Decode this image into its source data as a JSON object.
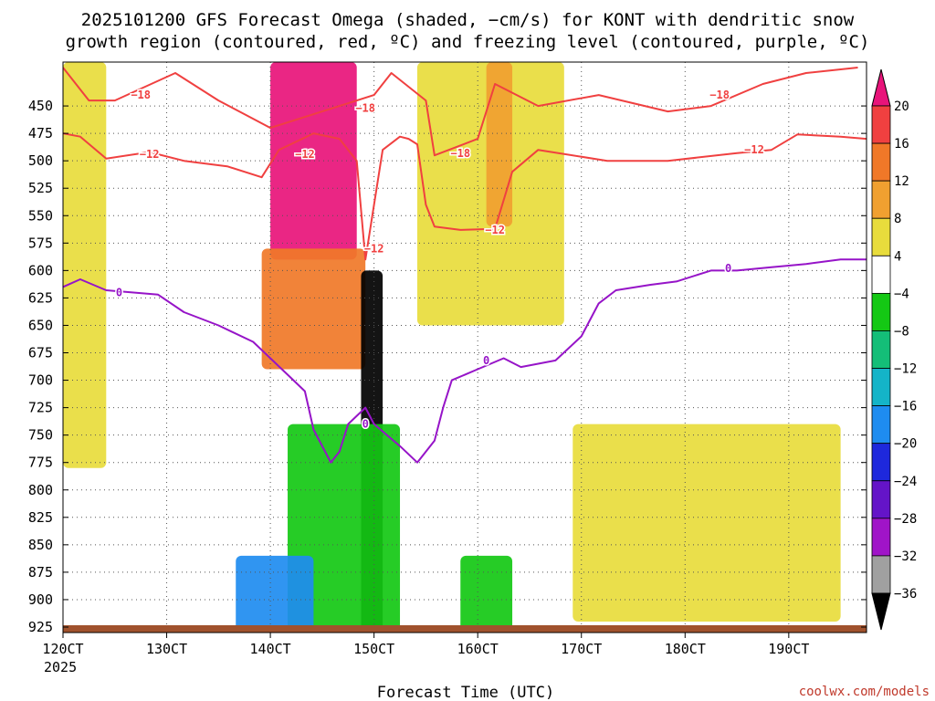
{
  "chart_data": {
    "type": "heatmap",
    "title": "2025101200 GFS Forecast Omega (shaded, −cm/s) for KONT with dendritic snow",
    "title_line2": "growth region (contoured, red, ºC) and freezing level (contoured, purple, ºC)",
    "xlabel": "Forecast Time (UTC)",
    "x_first_label": "120CT",
    "x_year": "2025",
    "x_ticks": [
      {
        "label": "120CT",
        "hour": 0
      },
      {
        "label": "130CT",
        "hour": 24
      },
      {
        "label": "140CT",
        "hour": 48
      },
      {
        "label": "150CT",
        "hour": 72
      },
      {
        "label": "160CT",
        "hour": 96
      },
      {
        "label": "170CT",
        "hour": 120
      },
      {
        "label": "180CT",
        "hour": 144
      },
      {
        "label": "190CT",
        "hour": 168
      }
    ],
    "xlim": [
      0,
      186
    ],
    "ylim": [
      930,
      410
    ],
    "y_ticks": [
      450,
      475,
      500,
      525,
      550,
      575,
      600,
      625,
      650,
      675,
      700,
      725,
      750,
      775,
      800,
      825,
      850,
      875,
      900,
      925
    ],
    "colorbar_labels": [
      "20",
      "16",
      "12",
      "8",
      "4",
      "−4",
      "−8",
      "−12",
      "−16",
      "−20",
      "−24",
      "−28",
      "−32",
      "−36"
    ],
    "colorbar_bins": [
      {
        "range": "≥20",
        "color": "#e8147a"
      },
      {
        "range": "16 to 20",
        "color": "#f04040"
      },
      {
        "range": "12 to 16",
        "color": "#f07828"
      },
      {
        "range": "8 to 12",
        "color": "#f0a030"
      },
      {
        "range": "4 to 8",
        "color": "#e8dc3c"
      },
      {
        "range": "−4 to 4",
        "color": "#ffffff"
      },
      {
        "range": "−8 to −4",
        "color": "#14c814"
      },
      {
        "range": "−12 to −8",
        "color": "#14be78"
      },
      {
        "range": "−16 to −12",
        "color": "#14b4c8"
      },
      {
        "range": "−20 to −16",
        "color": "#1e8cf0"
      },
      {
        "range": "−24 to −20",
        "color": "#1e28dc"
      },
      {
        "range": "−28 to −24",
        "color": "#6414c8"
      },
      {
        "range": "−32 to −28",
        "color": "#a014c8"
      },
      {
        "range": "−36 to −32",
        "color": "#a0a0a0"
      },
      {
        "range": "<−36",
        "color": "#000000"
      }
    ],
    "shaded_regions": [
      {
        "name": "strong-ascent-upper",
        "bin": "≥20",
        "t": [
          48,
          68
        ],
        "p": [
          410,
          590
        ]
      },
      {
        "name": "ascent-orange-upper",
        "bin": "12 to 16",
        "t": [
          46,
          70
        ],
        "p": [
          580,
          690
        ]
      },
      {
        "name": "ascent-yellow-left",
        "bin": "4 to 8",
        "t": [
          0,
          10
        ],
        "p": [
          410,
          780
        ]
      },
      {
        "name": "ascent-yellow-mid",
        "bin": "4 to 8",
        "t": [
          82,
          116
        ],
        "p": [
          410,
          650
        ]
      },
      {
        "name": "ascent-orange-mid",
        "bin": "8 to 12",
        "t": [
          98,
          104
        ],
        "p": [
          410,
          560
        ]
      },
      {
        "name": "ascent-yellow-right",
        "bin": "4 to 8",
        "t": [
          118,
          180
        ],
        "p": [
          740,
          920
        ]
      },
      {
        "name": "descent-core",
        "bin": "<−36",
        "t": [
          69,
          74
        ],
        "p": [
          600,
          930
        ]
      },
      {
        "name": "descent-green-low",
        "bin": "−8 to −4",
        "t": [
          52,
          78
        ],
        "p": [
          740,
          930
        ]
      },
      {
        "name": "descent-blue-low",
        "bin": "−20 to −16",
        "t": [
          40,
          58
        ],
        "p": [
          860,
          930
        ]
      },
      {
        "name": "descent-green-lowright",
        "bin": "−8 to −4",
        "t": [
          92,
          104
        ],
        "p": [
          860,
          930
        ]
      }
    ],
    "contours": [
      {
        "name": "dgz -18 C",
        "color": "#f04040",
        "label": "−18",
        "points": [
          [
            0,
            415
          ],
          [
            6,
            445
          ],
          [
            12,
            445
          ],
          [
            26,
            420
          ],
          [
            36,
            445
          ],
          [
            48,
            470
          ],
          [
            64,
            450
          ],
          [
            72,
            440
          ],
          [
            76,
            420
          ],
          [
            84,
            445
          ],
          [
            86,
            495
          ],
          [
            96,
            480
          ],
          [
            100,
            430
          ],
          [
            110,
            450
          ],
          [
            124,
            440
          ],
          [
            140,
            455
          ],
          [
            150,
            450
          ],
          [
            162,
            430
          ],
          [
            172,
            420
          ],
          [
            184,
            415
          ]
        ]
      },
      {
        "name": "dgz -12 C",
        "color": "#f04040",
        "label": "−12",
        "points": [
          [
            0,
            475
          ],
          [
            4,
            478
          ],
          [
            10,
            498
          ],
          [
            20,
            492
          ],
          [
            28,
            500
          ],
          [
            38,
            505
          ],
          [
            46,
            515
          ],
          [
            50,
            490
          ],
          [
            58,
            475
          ],
          [
            64,
            480
          ],
          [
            68,
            500
          ],
          [
            70,
            590
          ],
          [
            74,
            490
          ],
          [
            78,
            478
          ],
          [
            80,
            480
          ],
          [
            82,
            485
          ],
          [
            84,
            540
          ],
          [
            86,
            560
          ],
          [
            92,
            563
          ],
          [
            100,
            562
          ],
          [
            104,
            510
          ],
          [
            110,
            490
          ],
          [
            126,
            500
          ],
          [
            140,
            500
          ],
          [
            156,
            493
          ],
          [
            164,
            490
          ],
          [
            170,
            476
          ],
          [
            180,
            478
          ],
          [
            186,
            480
          ]
        ]
      },
      {
        "name": "freezing level 0 C",
        "color": "#9614c8",
        "label": "0",
        "points": [
          [
            0,
            615
          ],
          [
            4,
            608
          ],
          [
            10,
            618
          ],
          [
            22,
            622
          ],
          [
            28,
            638
          ],
          [
            36,
            650
          ],
          [
            44,
            665
          ],
          [
            52,
            695
          ],
          [
            56,
            710
          ],
          [
            58,
            745
          ],
          [
            62,
            775
          ],
          [
            64,
            765
          ],
          [
            66,
            740
          ],
          [
            70,
            725
          ],
          [
            72,
            740
          ],
          [
            78,
            760
          ],
          [
            82,
            775
          ],
          [
            86,
            755
          ],
          [
            88,
            725
          ],
          [
            90,
            700
          ],
          [
            96,
            690
          ],
          [
            102,
            680
          ],
          [
            106,
            688
          ],
          [
            114,
            682
          ],
          [
            120,
            660
          ],
          [
            124,
            630
          ],
          [
            128,
            618
          ],
          [
            136,
            613
          ],
          [
            142,
            610
          ],
          [
            150,
            600
          ],
          [
            156,
            600
          ],
          [
            164,
            597
          ],
          [
            172,
            594
          ],
          [
            180,
            590
          ],
          [
            186,
            590
          ]
        ]
      }
    ],
    "contour_labels": [
      {
        "text": "−18",
        "t": 18,
        "p": 440,
        "color": "#f04040"
      },
      {
        "text": "−18",
        "t": 70,
        "p": 452,
        "color": "#f04040"
      },
      {
        "text": "−18",
        "t": 92,
        "p": 493,
        "color": "#f04040"
      },
      {
        "text": "−18",
        "t": 152,
        "p": 440,
        "color": "#f04040"
      },
      {
        "text": "−12",
        "t": 20,
        "p": 494,
        "color": "#f04040"
      },
      {
        "text": "−12",
        "t": 56,
        "p": 494,
        "color": "#f04040"
      },
      {
        "text": "−12",
        "t": 72,
        "p": 580,
        "color": "#f04040"
      },
      {
        "text": "−12",
        "t": 100,
        "p": 563,
        "color": "#f04040"
      },
      {
        "text": "−12",
        "t": 160,
        "p": 490,
        "color": "#f04040"
      },
      {
        "text": "0",
        "t": 13,
        "p": 620,
        "color": "#9614c8"
      },
      {
        "text": "0",
        "t": 70,
        "p": 740,
        "color": "#9614c8"
      },
      {
        "text": "0",
        "t": 98,
        "p": 682,
        "color": "#9614c8"
      },
      {
        "text": "0",
        "t": 154,
        "p": 598,
        "color": "#9614c8"
      }
    ],
    "ground_color": "#a0522d",
    "credit": "coolwx.com/models"
  }
}
